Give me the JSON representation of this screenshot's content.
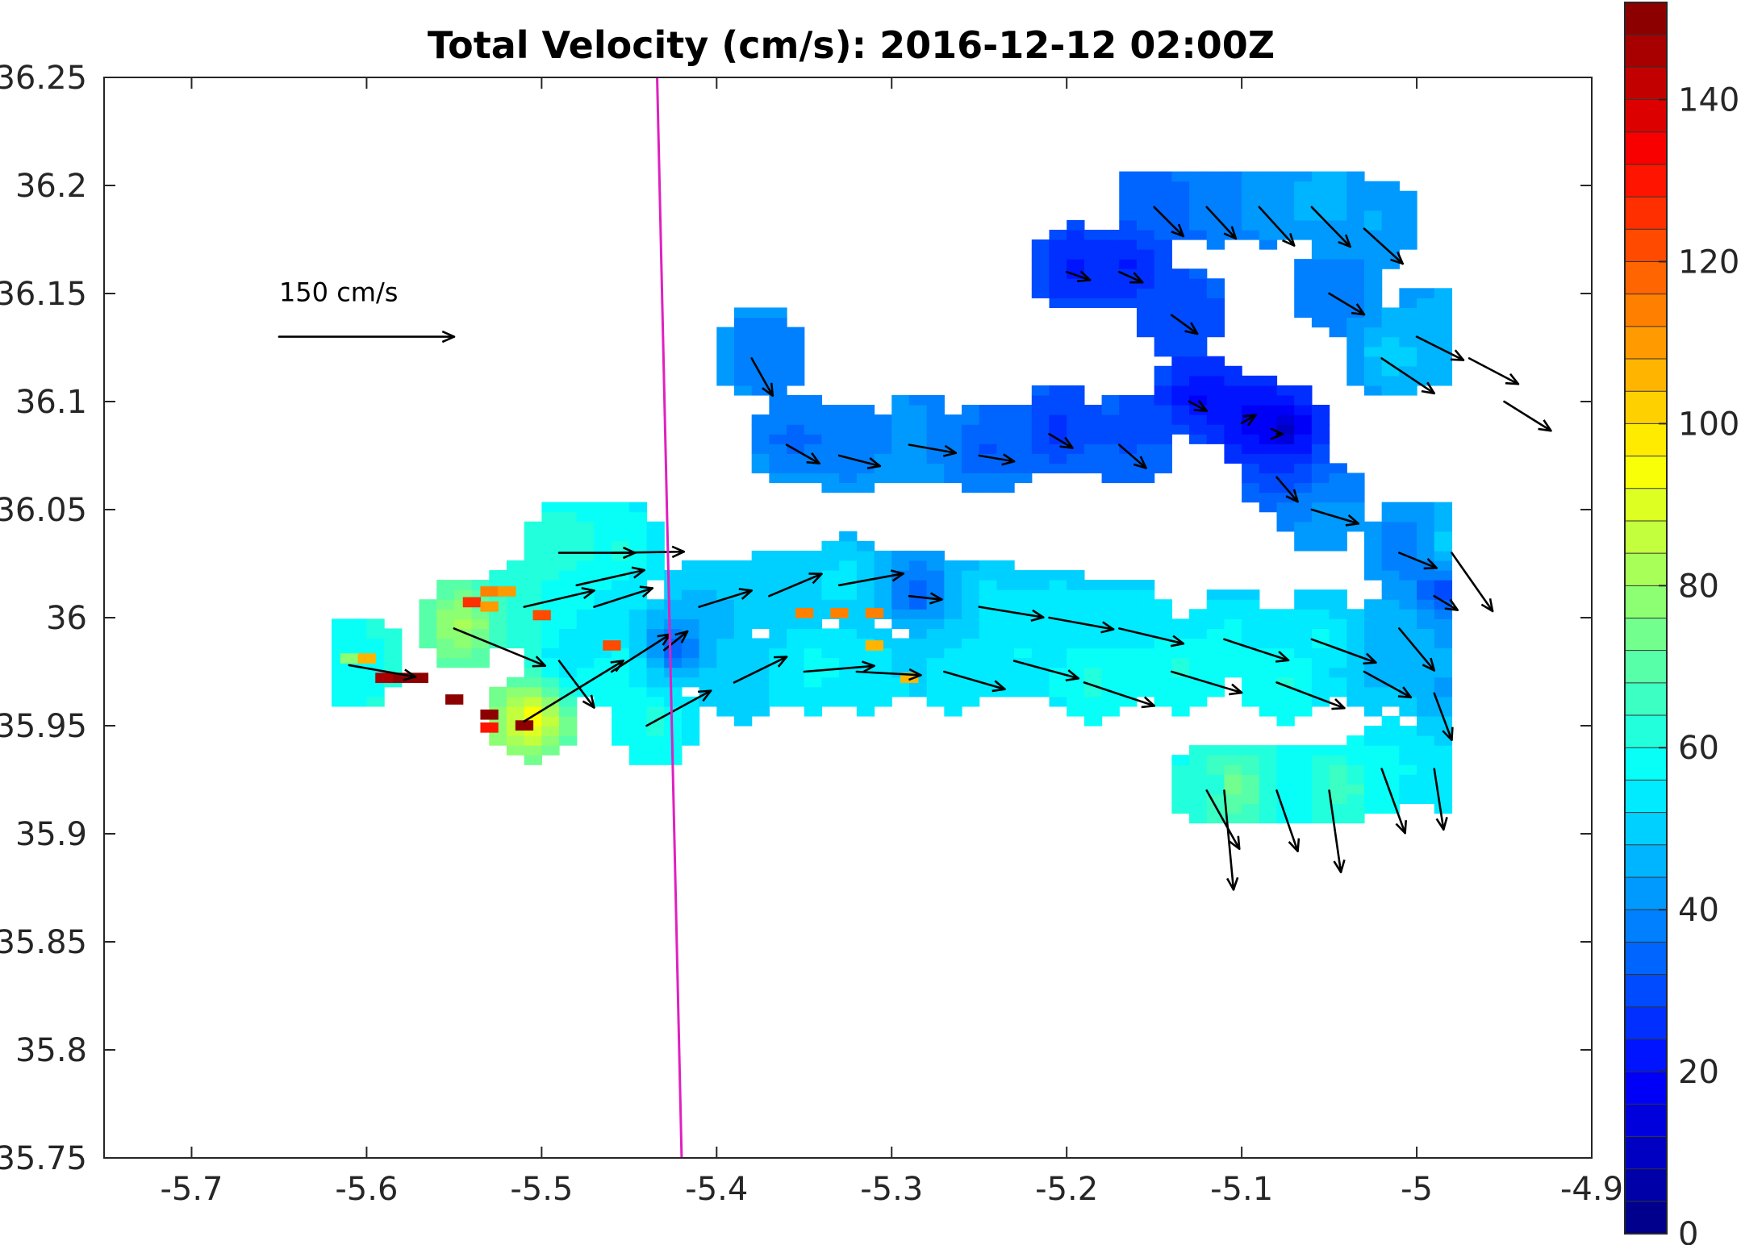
{
  "chart_data": {
    "type": "heatmap",
    "title": "Total Velocity (cm/s): 2016-12-12 02:00Z",
    "xlim": [
      -5.75,
      -4.9
    ],
    "ylim": [
      35.75,
      36.25
    ],
    "xticks": [
      -5.7,
      -5.6,
      -5.5,
      -5.4,
      -5.3,
      -5.2,
      -5.1,
      -5.0,
      -4.9
    ],
    "xtick_labels": [
      "-5.7",
      "-5.6",
      "-5.5",
      "-5.4",
      "-5.3",
      "-5.2",
      "-5.1",
      "-5",
      "-4.9"
    ],
    "yticks": [
      35.75,
      35.8,
      35.85,
      35.9,
      35.95,
      36.0,
      36.05,
      36.1,
      36.15,
      36.2,
      36.25
    ],
    "ytick_labels": [
      "35.75",
      "35.8",
      "35.85",
      "35.9",
      "35.95",
      "36",
      "36.05",
      "36.1",
      "36.15",
      "36.2",
      "36.25"
    ],
    "colorbar": {
      "range": [
        0,
        152
      ],
      "ticks": [
        0,
        20,
        40,
        60,
        80,
        100,
        120,
        140
      ],
      "tick_labels": [
        "0",
        "20",
        "40",
        "60",
        "80",
        "100",
        "120",
        "140"
      ],
      "colormap": "jet",
      "levels": 38
    },
    "reference_vector": {
      "label": "150 cm/s",
      "speed": 150,
      "lon": -5.65,
      "lat": 36.13
    },
    "magenta_line": {
      "color": "#e020c0",
      "points": [
        [
          -5.434,
          36.25
        ],
        [
          -5.42,
          35.75
        ]
      ]
    },
    "vectors": [
      [
        -5.61,
        35.978,
        57,
        -10
      ],
      [
        -5.55,
        35.995,
        78,
        -32
      ],
      [
        -5.51,
        36.005,
        60,
        14
      ],
      [
        -5.51,
        35.952,
        85,
        52
      ],
      [
        -5.49,
        36.03,
        65,
        0
      ],
      [
        -5.49,
        35.98,
        30,
        -40
      ],
      [
        -5.48,
        36.015,
        58,
        13
      ],
      [
        -5.47,
        36.005,
        50,
        16
      ],
      [
        -5.46,
        36.03,
        62,
        1
      ],
      [
        -5.46,
        35.975,
        50,
        32
      ],
      [
        -5.44,
        35.95,
        55,
        30
      ],
      [
        -5.43,
        35.985,
        20,
        16
      ],
      [
        -5.41,
        36.005,
        45,
        14
      ],
      [
        -5.39,
        35.97,
        45,
        22
      ],
      [
        -5.37,
        36.01,
        45,
        19
      ],
      [
        -5.35,
        35.975,
        60,
        5
      ],
      [
        -5.33,
        36.015,
        55,
        10
      ],
      [
        -5.32,
        35.975,
        55,
        -3
      ],
      [
        -5.29,
        36.01,
        28,
        -3
      ],
      [
        -5.27,
        35.975,
        52,
        -15
      ],
      [
        -5.25,
        36.005,
        55,
        -9
      ],
      [
        -5.23,
        35.98,
        55,
        -15
      ],
      [
        -5.21,
        36.0,
        55,
        -10
      ],
      [
        -5.19,
        35.97,
        60,
        -20
      ],
      [
        -5.17,
        35.995,
        55,
        -13
      ],
      [
        -5.14,
        35.975,
        60,
        -18
      ],
      [
        -5.11,
        35.99,
        55,
        -18
      ],
      [
        -5.08,
        35.97,
        58,
        -22
      ],
      [
        -5.06,
        35.99,
        55,
        -20
      ],
      [
        -5.03,
        35.975,
        40,
        -22
      ],
      [
        -5.01,
        35.995,
        30,
        -36
      ],
      [
        -4.99,
        35.965,
        15,
        -40
      ],
      [
        -5.38,
        36.12,
        18,
        -32
      ],
      [
        -5.36,
        36.08,
        28,
        -16
      ],
      [
        -5.33,
        36.075,
        35,
        -9
      ],
      [
        -5.29,
        36.08,
        40,
        -7
      ],
      [
        -5.25,
        36.075,
        30,
        -5
      ],
      [
        -5.21,
        36.085,
        20,
        -12
      ],
      [
        -5.17,
        36.08,
        23,
        -20
      ],
      [
        -5.13,
        36.1,
        15,
        -8
      ],
      [
        -5.1,
        36.09,
        12,
        7
      ],
      [
        -5.08,
        36.085,
        5,
        0
      ],
      [
        -5.08,
        36.065,
        18,
        -21
      ],
      [
        -5.15,
        36.19,
        25,
        -25
      ],
      [
        -5.12,
        36.19,
        25,
        -27
      ],
      [
        -5.09,
        36.19,
        30,
        -33
      ],
      [
        -5.06,
        36.19,
        33,
        -34
      ],
      [
        -5.03,
        36.18,
        33,
        -30
      ],
      [
        -5.2,
        36.16,
        20,
        -7
      ],
      [
        -5.17,
        36.16,
        20,
        -9
      ],
      [
        -5.14,
        36.14,
        22,
        -16
      ],
      [
        -5.05,
        36.15,
        30,
        -18
      ],
      [
        -5.0,
        36.13,
        40,
        -20
      ],
      [
        -4.97,
        36.12,
        42,
        -22
      ],
      [
        -4.95,
        36.1,
        40,
        -25
      ],
      [
        -5.02,
        36.12,
        45,
        -30
      ],
      [
        -5.06,
        36.05,
        40,
        -12
      ],
      [
        -5.01,
        36.03,
        32,
        -13
      ],
      [
        -4.99,
        36.01,
        20,
        -12
      ],
      [
        -4.98,
        36.03,
        35,
        -50
      ],
      [
        -5.12,
        35.92,
        28,
        -50
      ],
      [
        -5.11,
        35.92,
        8,
        -85
      ],
      [
        -5.08,
        35.92,
        18,
        -52
      ],
      [
        -5.05,
        35.92,
        10,
        -70
      ],
      [
        -5.02,
        35.93,
        20,
        -55
      ],
      [
        -4.99,
        35.93,
        8,
        -52
      ]
    ],
    "cells": [
      [
        -5.61,
        35.979,
        78
      ],
      [
        -5.6,
        35.979,
        105
      ],
      [
        -5.59,
        35.97,
        145
      ],
      [
        -5.58,
        35.97,
        150
      ],
      [
        -5.57,
        35.97,
        148
      ],
      [
        -5.55,
        35.96,
        149
      ],
      [
        -5.53,
        35.953,
        150
      ],
      [
        -5.53,
        35.947,
        128
      ],
      [
        -5.51,
        35.948,
        152
      ],
      [
        -5.53,
        36.01,
        112
      ],
      [
        -5.52,
        36.01,
        110
      ],
      [
        -5.54,
        36.005,
        124
      ],
      [
        -5.53,
        36.003,
        108
      ],
      [
        -5.5,
        35.999,
        120
      ],
      [
        -5.46,
        35.985,
        122
      ],
      [
        -5.35,
        36.0,
        112
      ],
      [
        -5.33,
        36.0,
        115
      ],
      [
        -5.31,
        36.0,
        112
      ],
      [
        -5.29,
        35.97,
        106
      ],
      [
        -5.31,
        35.985,
        104
      ]
    ]
  }
}
